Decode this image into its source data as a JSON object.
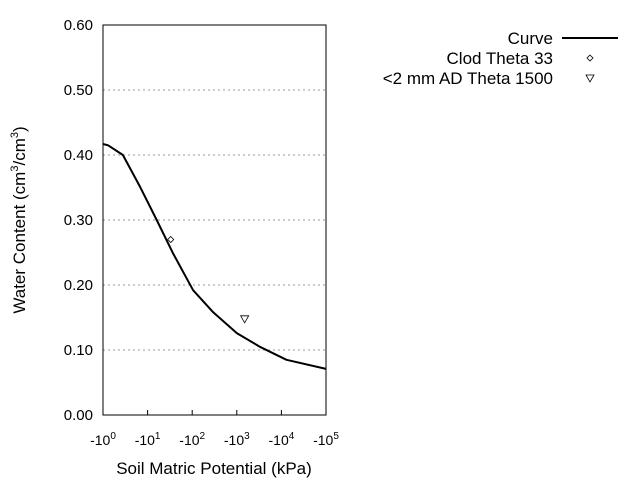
{
  "chart_data": {
    "type": "line",
    "title": "",
    "xlabel": "Soil Matric Potential (kPa)",
    "ylabel_main": "Water Content (cm",
    "ylabel_sup1": "3",
    "ylabel_mid": "/cm",
    "ylabel_sup2": "3",
    "ylabel_end": ")",
    "x_scale": "log (negative pressure)",
    "xlim_kpa_magnitude": [
      1,
      100000
    ],
    "x_tick_labels": [
      {
        "base": "-10",
        "exp": "0",
        "value": 1
      },
      {
        "base": "-10",
        "exp": "1",
        "value": 10
      },
      {
        "base": "-10",
        "exp": "2",
        "value": 100
      },
      {
        "base": "-10",
        "exp": "3",
        "value": 1000
      },
      {
        "base": "-10",
        "exp": "4",
        "value": 10000
      },
      {
        "base": "-10",
        "exp": "5",
        "value": 100000
      }
    ],
    "ylim": [
      0,
      0.6
    ],
    "y_ticks": [
      "0.00",
      "0.10",
      "0.20",
      "0.30",
      "0.40",
      "0.50",
      "0.60"
    ],
    "grid": "horizontal dotted",
    "legend_placement": "top-right outside",
    "series": [
      {
        "name": "Curve",
        "kind": "line",
        "color": "#000000",
        "x": [
          1,
          1.3,
          2.8,
          6.8,
          16,
          37,
          105,
          295,
          1000,
          3300,
          13000,
          100000
        ],
        "y": [
          0.417,
          0.415,
          0.4,
          0.351,
          0.3,
          0.249,
          0.192,
          0.158,
          0.126,
          0.105,
          0.085,
          0.071
        ]
      },
      {
        "name": "Clod Theta 33",
        "kind": "point",
        "marker": "diamond",
        "x": [
          33
        ],
        "y": [
          0.27
        ]
      },
      {
        "name": "<2 mm AD Theta 1500",
        "kind": "point",
        "marker": "triangle-down",
        "x": [
          1500
        ],
        "y": [
          0.148
        ]
      }
    ]
  }
}
